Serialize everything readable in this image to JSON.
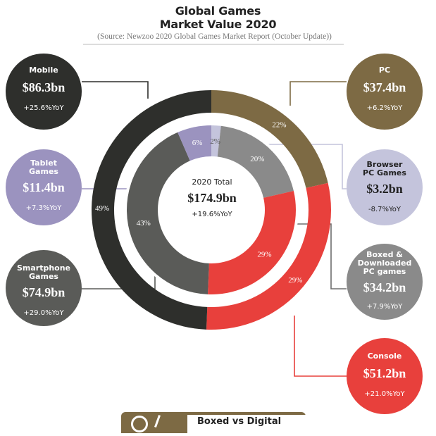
{
  "title_line1": "Global Games",
  "title_line2": "Market Value 2020",
  "source": "(Source: Newzoo 2020 Global Games Market Report (October Update))",
  "chart_data": {
    "type": "donut",
    "title": "Global Games Market Value 2020",
    "total": {
      "label": "2020 Total",
      "value": "$174.9bn",
      "yoy": "+19.6%YoY",
      "value_bn": 174.9
    },
    "outer_ring": [
      {
        "name": "PC",
        "value_bn": 37.4,
        "pct": 22,
        "pct_label": "22%",
        "value_label": "$37.4bn",
        "yoy": "+6.2%YoY",
        "color": "#7d6a44"
      },
      {
        "name": "Console",
        "value_bn": 51.2,
        "pct": 29,
        "pct_label": "29%",
        "value_label": "$51.2bn",
        "yoy": "+21.0%YoY",
        "color": "#e8403c"
      },
      {
        "name": "Mobile",
        "value_bn": 86.3,
        "pct": 49,
        "pct_label": "49%",
        "value_label": "$86.3bn",
        "yoy": "+25.6%YoY",
        "color": "#2e2f2c"
      }
    ],
    "inner_ring": [
      {
        "name": "Browser PC Games",
        "value_bn": 3.2,
        "pct": 2,
        "pct_label": "2%",
        "value_label": "$3.2bn",
        "yoy": "-8.7%YoY",
        "color": "#c4c4dc"
      },
      {
        "name": "Boxed & Downloaded PC games",
        "value_bn": 34.2,
        "pct": 20,
        "pct_label": "20%",
        "value_label": "$34.2bn",
        "yoy": "+7.9%YoY",
        "color": "#8a8a8a"
      },
      {
        "name": "Console",
        "value_bn": 51.2,
        "pct": 29,
        "pct_label": "29%",
        "value_label": "$51.2bn",
        "yoy": "+21.0%YoY",
        "color": "#e8403c"
      },
      {
        "name": "Smartphone Games",
        "value_bn": 74.9,
        "pct": 43,
        "pct_label": "43%",
        "value_label": "$74.9bn",
        "yoy": "+29.0%YoY",
        "color": "#5a5b58"
      },
      {
        "name": "Tablet Games",
        "value_bn": 11.4,
        "pct": 6,
        "pct_label": "6%",
        "value_label": "$11.4bn",
        "yoy": "+7.3%YoY",
        "color": "#9b93bf"
      }
    ]
  },
  "bubbles": {
    "mobile": {
      "name": "Mobile",
      "value": "$86.3bn",
      "yoy": "+25.6%YoY"
    },
    "tablet": {
      "name1": "Tablet",
      "name2": "Games",
      "value": "$11.4bn",
      "yoy": "+7.3%YoY"
    },
    "smartphone": {
      "name1": "Smartphone",
      "name2": "Games",
      "value": "$74.9bn",
      "yoy": "+29.0%YoY"
    },
    "pc": {
      "name": "PC",
      "value": "$37.4bn",
      "yoy": "+6.2%YoY"
    },
    "browser": {
      "name1": "Browser",
      "name2": "PC Games",
      "value": "$3.2bn",
      "yoy": "-8.7%YoY"
    },
    "boxed": {
      "name1": "Boxed &",
      "name2": "Downloaded",
      "name3": "PC games",
      "value": "$34.2bn",
      "yoy": "+7.9%YoY"
    },
    "console": {
      "name": "Console",
      "value": "$51.2bn",
      "yoy": "+21.0%YoY"
    }
  },
  "footer": {
    "text": "Boxed vs Digital"
  }
}
